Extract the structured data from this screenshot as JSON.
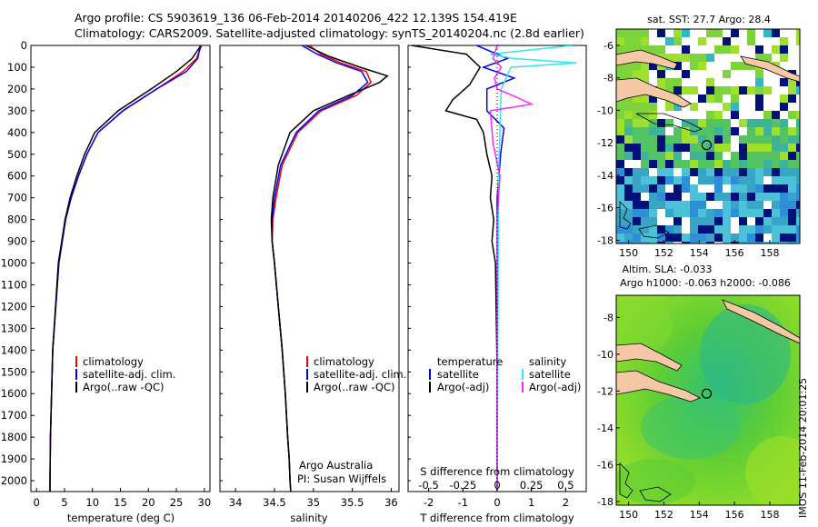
{
  "header": {
    "line1": "Argo profile: CS 5903619_136 06-Feb-2014 20140206_422 12.139S 154.419E",
    "line2": "Climatology: CARS2009. Satellite-adjusted climatology: synTS_20140204.nc (2.8d earlier)"
  },
  "footer": {
    "imos": "IMOS 11-Feb-2014 20:01:25"
  },
  "colors": {
    "climatology": "#ff0000",
    "satellite": "#0000ff",
    "argo": "#000000",
    "sat_salinity": "#33e6ee",
    "argo_salinity": "#ff22ff",
    "land": "#f7c8a6"
  },
  "chart_data": [
    {
      "type": "line",
      "name": "temperature",
      "xlabel": "temperature (deg C)",
      "xlim": [
        -1,
        31
      ],
      "xticks": [
        0,
        5,
        10,
        15,
        20,
        25,
        30
      ],
      "ylim": [
        0,
        2050
      ],
      "yticks": [
        0,
        100,
        200,
        300,
        400,
        500,
        600,
        700,
        800,
        900,
        1000,
        1100,
        1200,
        1300,
        1400,
        1500,
        1600,
        1700,
        1800,
        1900,
        2000
      ],
      "legend": [
        "climatology",
        "satellite-adj. clim.",
        "Argo(..raw -QC)"
      ],
      "legend_position": "bottom-center",
      "series": [
        {
          "name": "climatology",
          "color": "#ff0000",
          "x": [
            29.5,
            28.6,
            26.2,
            21.5,
            15.5,
            11.0,
            9.0,
            7.5,
            6.2,
            5.2,
            4.6,
            4.0,
            2.9,
            2.5,
            2.4
          ],
          "y": [
            0,
            60,
            120,
            200,
            300,
            400,
            500,
            600,
            700,
            800,
            900,
            1000,
            1400,
            1800,
            2050
          ]
        },
        {
          "name": "satellite-adj. clim.",
          "color": "#0000ff",
          "x": [
            29.3,
            28.8,
            26.8,
            21.5,
            15.4,
            11.0,
            9.0,
            7.5,
            6.2,
            5.2,
            4.6,
            4.0,
            2.9,
            2.5,
            2.4
          ],
          "y": [
            0,
            60,
            120,
            200,
            300,
            400,
            500,
            600,
            700,
            800,
            900,
            1000,
            1400,
            1800,
            2050
          ]
        },
        {
          "name": "Argo(..raw -QC)",
          "color": "#000000",
          "x": [
            29.4,
            27.8,
            25.0,
            20.5,
            14.6,
            10.4,
            8.6,
            7.2,
            6.0,
            5.1,
            4.5,
            3.9,
            2.9,
            2.5,
            2.4
          ],
          "y": [
            0,
            60,
            120,
            200,
            300,
            400,
            500,
            600,
            700,
            800,
            900,
            1000,
            1400,
            1800,
            2050
          ]
        }
      ]
    },
    {
      "type": "line",
      "name": "salinity",
      "xlabel": "salinity",
      "xlim": [
        33.8,
        36.1
      ],
      "xticks": [
        34,
        34.5,
        35,
        35.5,
        36
      ],
      "ylim": [
        0,
        2050
      ],
      "legend": [
        "climatology",
        "satellite-adj. clim.",
        "Argo(..raw -QC)"
      ],
      "legend_position": "bottom-center",
      "annotation": [
        "Argo Australia",
        "PI: Susan Wijffels"
      ],
      "series": [
        {
          "name": "climatology",
          "color": "#ff0000",
          "x": [
            34.95,
            35.1,
            35.35,
            35.68,
            35.74,
            35.55,
            35.1,
            34.8,
            34.6,
            34.52,
            34.48,
            34.47,
            34.5,
            34.55,
            34.6,
            34.64,
            34.67,
            34.69,
            34.7,
            34.71
          ],
          "y": [
            0,
            40,
            80,
            120,
            170,
            230,
            300,
            400,
            550,
            700,
            800,
            900,
            1000,
            1200,
            1400,
            1600,
            1800,
            1900,
            2000,
            2050
          ]
        },
        {
          "name": "satellite-adj. clim.",
          "color": "#0000ff",
          "x": [
            34.85,
            35.05,
            35.3,
            35.62,
            35.7,
            35.5,
            35.07,
            34.78,
            34.58,
            34.5,
            34.47,
            34.47,
            34.5,
            34.55,
            34.6,
            34.64,
            34.67,
            34.69,
            34.7,
            34.71
          ],
          "y": [
            0,
            40,
            80,
            120,
            170,
            230,
            300,
            400,
            550,
            700,
            800,
            900,
            1000,
            1200,
            1400,
            1600,
            1800,
            1900,
            2000,
            2050
          ]
        },
        {
          "name": "Argo(..raw -QC)",
          "color": "#000000",
          "x": [
            34.9,
            35.2,
            35.6,
            35.95,
            35.85,
            35.45,
            35.0,
            34.7,
            34.55,
            34.48,
            34.46,
            34.47,
            34.5,
            34.55,
            34.6,
            34.64,
            34.67,
            34.69,
            34.7,
            34.71
          ],
          "y": [
            0,
            50,
            100,
            140,
            170,
            230,
            300,
            400,
            550,
            700,
            800,
            900,
            1000,
            1200,
            1400,
            1600,
            1800,
            1900,
            2000,
            2050
          ]
        }
      ]
    },
    {
      "type": "line",
      "name": "difference from climatology",
      "xlabel": "T difference from climatology",
      "xlabel_top": "S difference from climatology",
      "xlim": [
        -2.6,
        2.6
      ],
      "xticks": [
        -2,
        -1,
        0,
        1,
        2
      ],
      "xticks_top": [
        -0.5,
        -0.25,
        0,
        0.25,
        0.5
      ],
      "xlim_top": [
        -0.65,
        0.65
      ],
      "ylim": [
        0,
        2050
      ],
      "legend": [
        "temperature",
        "satellite",
        "Argo(-adj)",
        "salinity",
        "satellite",
        "Argo(-adj)"
      ],
      "legend_position": "bottom",
      "series": [
        {
          "name": "temperature satellite",
          "color": "#0000ff",
          "axis": "T",
          "x": [
            -0.6,
            0.3,
            -0.4,
            0.5,
            -0.3,
            -0.3,
            0.2,
            0.1,
            0.0,
            0.0
          ],
          "y": [
            0,
            60,
            100,
            150,
            200,
            300,
            380,
            500,
            700,
            2050
          ]
        },
        {
          "name": "temperature Argo(-adj)",
          "color": "#000000",
          "axis": "T",
          "x": [
            -2.5,
            -0.9,
            -0.5,
            -0.8,
            -1.3,
            -1.5,
            -0.6,
            -0.4,
            -0.3,
            -0.15,
            -0.2,
            -0.1,
            -0.15,
            -0.05,
            0.0,
            0.0
          ],
          "y": [
            0,
            40,
            100,
            180,
            250,
            300,
            340,
            400,
            500,
            600,
            700,
            800,
            900,
            1000,
            1500,
            2050
          ]
        },
        {
          "name": "salinity satellite",
          "color": "#33e6ee",
          "axis": "S",
          "x": [
            0.55,
            -0.05,
            0.12,
            0.58,
            0.1,
            0.03,
            0.02,
            0.01,
            0.0
          ],
          "y": [
            0,
            40,
            60,
            80,
            100,
            200,
            400,
            600,
            2050
          ]
        },
        {
          "name": "salinity Argo(-adj)",
          "color": "#ff22ff",
          "axis": "S",
          "x": [
            0.0,
            -0.03,
            0.03,
            -0.02,
            0.0,
            0.15,
            0.25,
            -0.05,
            -0.03,
            0.02,
            0.0,
            0.0
          ],
          "y": [
            0,
            60,
            100,
            150,
            200,
            240,
            270,
            300,
            450,
            600,
            800,
            2050
          ]
        }
      ]
    },
    {
      "type": "heatmap",
      "name": "satellite SST map",
      "title": "sat. SST: 27.7 Argo: 28.4",
      "xticks": [
        150,
        152,
        154,
        156,
        158
      ],
      "xlim": [
        149.3,
        159.7
      ],
      "yticks": [
        -6,
        -8,
        -10,
        -12,
        -14,
        -16,
        -18
      ],
      "ylim": [
        -18.2,
        -5.0
      ],
      "marker": {
        "lon": 154.419,
        "lat": -12.139
      }
    },
    {
      "type": "heatmap",
      "name": "altimetry map",
      "title": "Altim. SLA: -0.033",
      "subtitle": "Argo h1000: -0.063 h2000: -0.086",
      "xticks": [
        150,
        152,
        154,
        156,
        158
      ],
      "xlim": [
        149.3,
        159.7
      ],
      "yticks": [
        -8,
        -10,
        -12,
        -14,
        -16,
        -18
      ],
      "ylim": [
        -18.2,
        -6.8
      ],
      "marker": {
        "lon": 154.419,
        "lat": -12.139
      }
    }
  ]
}
